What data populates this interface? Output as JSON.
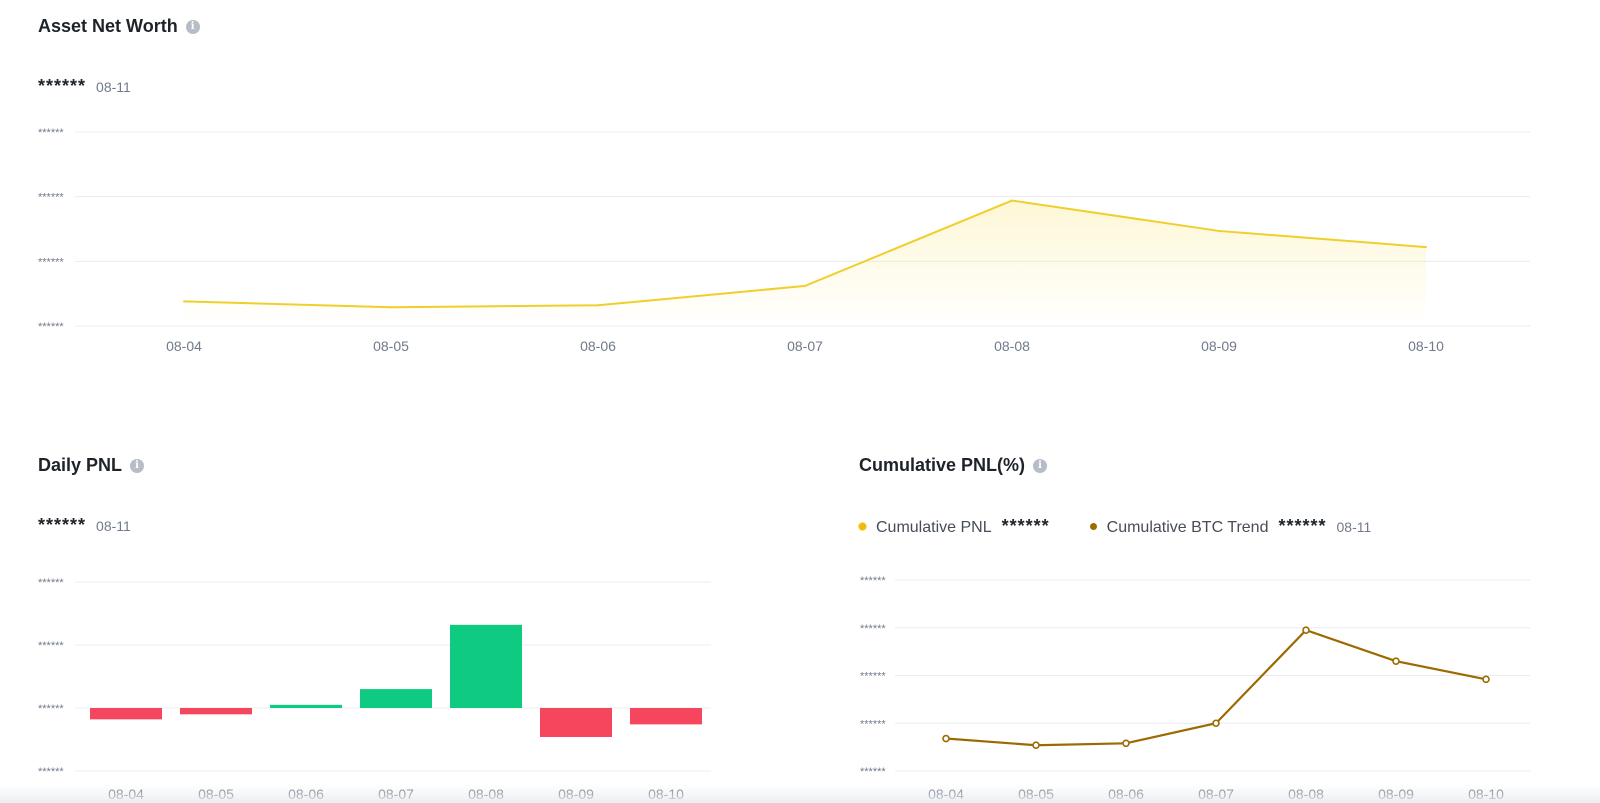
{
  "net_worth": {
    "title": "Asset Net Worth",
    "info_icon": "info-icon",
    "value": "******",
    "date": "08-11"
  },
  "daily_pnl": {
    "title": "Daily PNL",
    "info_icon": "info-icon",
    "value": "******",
    "date": "08-11"
  },
  "cumulative": {
    "title": "Cumulative PNL(%)",
    "info_icon": "info-icon",
    "legend": [
      {
        "label": "Cumulative PNL",
        "value": "******",
        "color": "#f0b90b"
      },
      {
        "label": "Cumulative BTC Trend",
        "value": "******",
        "color": "#9c6a00"
      }
    ],
    "date": "08-11"
  },
  "chart_data": [
    {
      "type": "area",
      "title": "Asset Net Worth",
      "categories": [
        "08-04",
        "08-05",
        "08-06",
        "08-07",
        "08-08",
        "08-09",
        "08-10"
      ],
      "y_tick_labels": [
        "******",
        "******",
        "******",
        "******"
      ],
      "y_ticks": [
        3,
        2,
        1,
        0
      ],
      "ylim": [
        0,
        3
      ],
      "series": [
        {
          "values": [
            0.38,
            0.29,
            0.32,
            0.62,
            1.94,
            1.47,
            1.22
          ],
          "color": "#f0cf2c"
        }
      ],
      "grid": true
    },
    {
      "type": "bar",
      "title": "Daily PNL",
      "categories": [
        "08-04",
        "08-05",
        "08-06",
        "08-07",
        "08-08",
        "08-09",
        "08-10"
      ],
      "y_tick_labels": [
        "******",
        "******",
        "******",
        "******"
      ],
      "y_ticks": [
        2,
        1,
        0,
        -1
      ],
      "ylim": [
        -1,
        2
      ],
      "values": [
        -0.18,
        -0.1,
        0.05,
        0.3,
        1.32,
        -0.46,
        -0.26
      ],
      "positive_color": "#0ecb81",
      "negative_color": "#f6465d",
      "grid": true
    },
    {
      "type": "line",
      "title": "Cumulative PNL(%)",
      "categories": [
        "08-04",
        "08-05",
        "08-06",
        "08-07",
        "08-08",
        "08-09",
        "08-10"
      ],
      "y_tick_labels": [
        "******",
        "******",
        "******",
        "******",
        "******"
      ],
      "y_ticks": [
        4,
        3,
        2,
        1,
        0
      ],
      "ylim": [
        0,
        4
      ],
      "series": [
        {
          "values": [
            0.68,
            0.54,
            0.58,
            1.0,
            2.95,
            2.3,
            1.92
          ],
          "color": "#9c6a00"
        }
      ],
      "grid": true
    }
  ]
}
